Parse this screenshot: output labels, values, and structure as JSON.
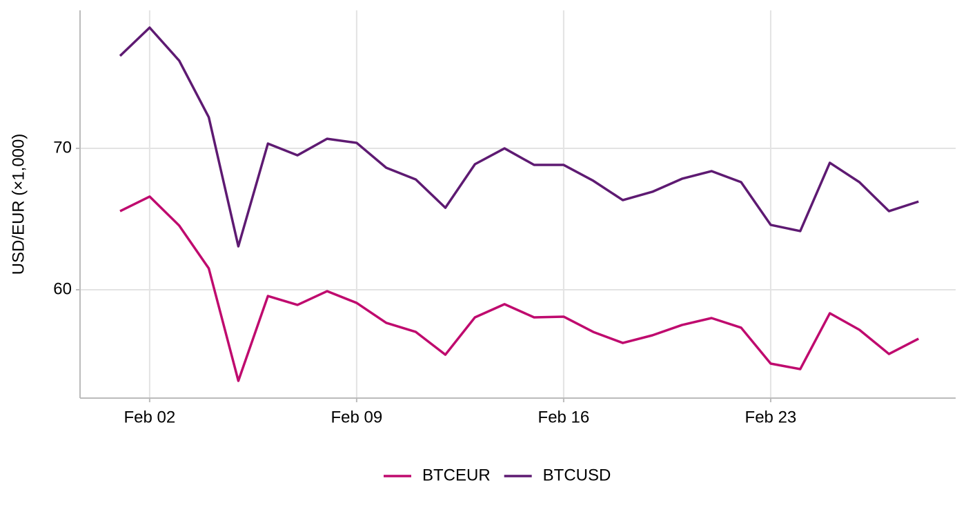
{
  "chart_data": {
    "type": "line",
    "y_label": "USD/EUR (×1,000)",
    "categories": [
      null,
      "Feb 02",
      null,
      null,
      null,
      null,
      null,
      null,
      "Feb 09",
      null,
      null,
      null,
      null,
      null,
      null,
      "Feb 16",
      null,
      null,
      null,
      null,
      null,
      null,
      "Feb 23",
      null,
      null,
      null,
      null,
      null
    ],
    "series": [
      {
        "name": "BTCEUR",
        "color": "#bf0a6e",
        "values": [
          65.56,
          66.59,
          64.54,
          61.51,
          53.56,
          59.56,
          58.93,
          59.9,
          59.07,
          57.66,
          57.02,
          55.41,
          58.05,
          58.98,
          58.05,
          58.1,
          57.02,
          56.24,
          56.78,
          57.51,
          58.0,
          57.32,
          54.78,
          54.39,
          58.34,
          57.17,
          55.46,
          56.54
        ]
      },
      {
        "name": "BTCUSD",
        "color": "#5e1a72",
        "values": [
          76.54,
          78.54,
          76.2,
          72.2,
          63.07,
          70.34,
          69.51,
          70.68,
          70.39,
          68.63,
          67.8,
          65.8,
          68.88,
          70.0,
          68.83,
          68.83,
          67.71,
          66.34,
          66.93,
          67.85,
          68.39,
          67.61,
          64.59,
          64.15,
          68.98,
          67.61,
          65.56,
          66.24
        ]
      }
    ],
    "ylim": [
      52.34,
      79.76
    ],
    "yticks": [
      60,
      70
    ],
    "grid": true,
    "legend": "bottom"
  }
}
